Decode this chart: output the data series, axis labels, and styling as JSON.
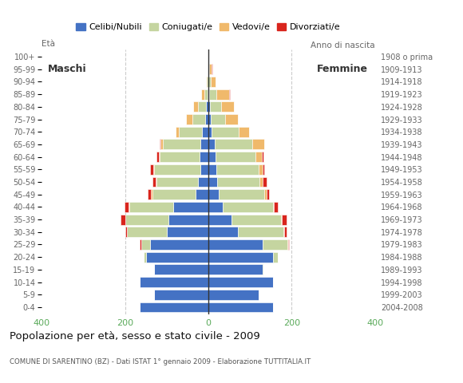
{
  "age_groups": [
    "0-4",
    "5-9",
    "10-14",
    "15-19",
    "20-24",
    "25-29",
    "30-34",
    "35-39",
    "40-44",
    "45-49",
    "50-54",
    "55-59",
    "60-64",
    "65-69",
    "70-74",
    "75-79",
    "80-84",
    "85-89",
    "90-94",
    "95-99",
    "100+"
  ],
  "birth_years": [
    "2004-2008",
    "1999-2003",
    "1994-1998",
    "1989-1993",
    "1984-1988",
    "1979-1983",
    "1974-1978",
    "1969-1973",
    "1964-1968",
    "1959-1963",
    "1954-1958",
    "1949-1953",
    "1944-1948",
    "1939-1943",
    "1934-1938",
    "1929-1933",
    "1924-1928",
    "1919-1923",
    "1914-1918",
    "1909-1913",
    "1908 o prima"
  ],
  "colors": {
    "celibe": "#4472C4",
    "coniugato": "#c5d5a0",
    "vedovo": "#f0b96b",
    "divorziato": "#d9251d"
  },
  "maschi": {
    "celibe": [
      165,
      130,
      165,
      130,
      150,
      140,
      100,
      95,
      85,
      30,
      25,
      20,
      22,
      20,
      15,
      8,
      5,
      2,
      0,
      0,
      0
    ],
    "coniugato": [
      0,
      0,
      0,
      0,
      5,
      20,
      95,
      105,
      105,
      105,
      100,
      110,
      95,
      90,
      55,
      30,
      20,
      8,
      3,
      0,
      0
    ],
    "vedovo": [
      0,
      0,
      0,
      0,
      0,
      0,
      0,
      0,
      2,
      2,
      2,
      2,
      2,
      5,
      8,
      15,
      12,
      8,
      2,
      0,
      0
    ],
    "divorziato": [
      0,
      0,
      0,
      0,
      0,
      5,
      5,
      10,
      10,
      8,
      8,
      8,
      5,
      2,
      0,
      0,
      0,
      0,
      0,
      0,
      0
    ]
  },
  "femmine": {
    "celibe": [
      155,
      120,
      155,
      130,
      155,
      130,
      70,
      55,
      35,
      25,
      22,
      20,
      18,
      15,
      8,
      5,
      3,
      2,
      0,
      0,
      0
    ],
    "coniugato": [
      0,
      0,
      0,
      2,
      12,
      60,
      110,
      120,
      120,
      110,
      100,
      100,
      95,
      90,
      65,
      35,
      28,
      18,
      5,
      2,
      0
    ],
    "vedovo": [
      0,
      0,
      0,
      0,
      0,
      2,
      2,
      2,
      2,
      5,
      8,
      10,
      15,
      30,
      25,
      30,
      30,
      30,
      12,
      5,
      0
    ],
    "divorziato": [
      0,
      0,
      0,
      0,
      0,
      2,
      5,
      10,
      10,
      5,
      10,
      5,
      5,
      0,
      0,
      0,
      0,
      2,
      0,
      2,
      0
    ]
  },
  "xlim": 400,
  "title": "Popolazione per età, sesso e stato civile - 2009",
  "subtitle": "COMUNE DI SARENTINO (BZ) - Dati ISTAT 1° gennaio 2009 - Elaborazione TUTTITALIA.IT",
  "ylabel_left": "Età",
  "ylabel_right": "Anno di nascita",
  "legend_labels": [
    "Celibi/Nubili",
    "Coniugati/e",
    "Vedovi/e",
    "Divorziati/e"
  ],
  "background_color": "#ffffff",
  "grid_color": "#cccccc",
  "label_maschi": "Maschi",
  "label_femmine": "Femmine",
  "xtick_color": "#5aaa5a"
}
